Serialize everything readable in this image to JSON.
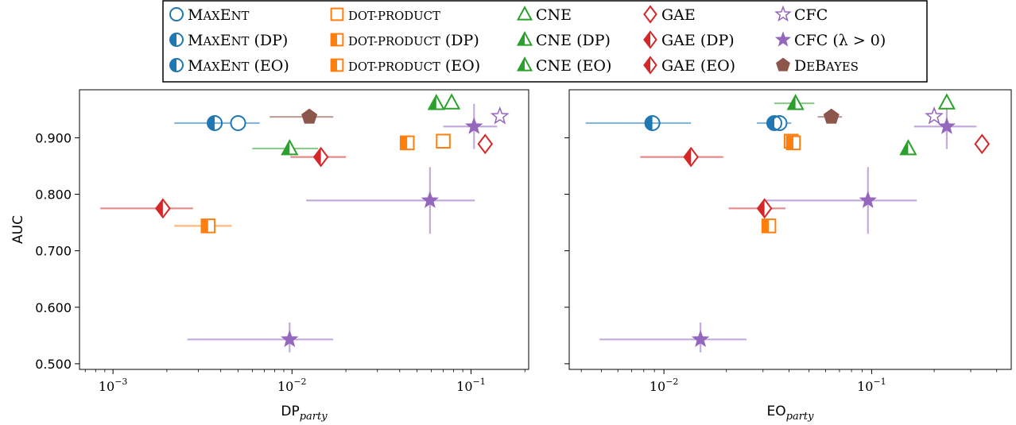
{
  "legend": {
    "columns": [
      [
        {
          "label": "MaxEnt",
          "marker": "circle",
          "fill": "none",
          "color": "#1f77b4"
        },
        {
          "label": "MaxEnt (DP)",
          "marker": "circle",
          "fill": "left",
          "color": "#1f77b4"
        },
        {
          "label": "MaxEnt (EO)",
          "marker": "circle",
          "fill": "left",
          "color": "#1f77b4"
        }
      ],
      [
        {
          "label": "dot-product",
          "marker": "square",
          "fill": "none",
          "color": "#ff7f0e"
        },
        {
          "label": "dot-product (DP)",
          "marker": "square",
          "fill": "left",
          "color": "#ff7f0e"
        },
        {
          "label": "dot-product (EO)",
          "marker": "square",
          "fill": "left",
          "color": "#ff7f0e"
        }
      ],
      [
        {
          "label": "CNE",
          "marker": "triangle",
          "fill": "none",
          "color": "#2ca02c"
        },
        {
          "label": "CNE (DP)",
          "marker": "triangle",
          "fill": "left",
          "color": "#2ca02c"
        },
        {
          "label": "CNE (EO)",
          "marker": "triangle",
          "fill": "left",
          "color": "#2ca02c"
        }
      ],
      [
        {
          "label": "GAE",
          "marker": "diamond",
          "fill": "none",
          "color": "#d62728"
        },
        {
          "label": "GAE (DP)",
          "marker": "diamond",
          "fill": "left",
          "color": "#d62728"
        },
        {
          "label": "GAE (EO)",
          "marker": "diamond",
          "fill": "left",
          "color": "#d62728"
        }
      ],
      [
        {
          "label": "CFC",
          "marker": "star",
          "fill": "none",
          "color": "#9467bd"
        },
        {
          "label": "CFC (λ > 0)",
          "marker": "star",
          "fill": "full",
          "color": "#9467bd"
        },
        {
          "label": "DeBayes",
          "marker": "pentagon",
          "fill": "full",
          "color": "#8c564b"
        }
      ]
    ]
  },
  "chart_data": [
    {
      "type": "scatter",
      "xlabel": "DP",
      "xlabel_sub": "party",
      "ylabel": "AUC",
      "xscale": "log",
      "xlim": [
        0.00065,
        0.21
      ],
      "ylim": [
        0.49,
        0.985
      ],
      "xticks": [
        {
          "value": 0.001,
          "exp": "-3"
        },
        {
          "value": 0.01,
          "exp": "-2"
        },
        {
          "value": 0.1,
          "exp": "-1"
        }
      ],
      "yticks": [
        0.5,
        0.6,
        0.7,
        0.8,
        0.9
      ],
      "ytick_labels": [
        "0.500",
        "0.600",
        "0.700",
        "0.800",
        "0.900"
      ],
      "points": [
        {
          "series": "MaxEnt",
          "x": 0.005,
          "y": 0.926,
          "xerr": [
            0.0038,
            0.0066
          ]
        },
        {
          "series": "MaxEnt (DP)",
          "x": 0.0037,
          "y": 0.926,
          "xerr": [
            0.0022,
            0.0055
          ]
        },
        {
          "series": "dot-product",
          "x": 0.07,
          "y": 0.894
        },
        {
          "series": "dot-product (DP)",
          "x": 0.044,
          "y": 0.891
        },
        {
          "series": "dot-product (EO)",
          "x": 0.0034,
          "y": 0.744,
          "xerr": [
            0.0022,
            0.0046
          ]
        },
        {
          "series": "CNE",
          "x": 0.078,
          "y": 0.962
        },
        {
          "series": "CNE (DP)",
          "x": 0.064,
          "y": 0.961
        },
        {
          "series": "CNE (EO)",
          "x": 0.0097,
          "y": 0.881,
          "xerr": [
            0.006,
            0.014
          ]
        },
        {
          "series": "GAE",
          "x": 0.12,
          "y": 0.889
        },
        {
          "series": "GAE (DP)",
          "x": 0.0145,
          "y": 0.866,
          "xerr": [
            0.0098,
            0.02
          ]
        },
        {
          "series": "GAE (EO)",
          "x": 0.0019,
          "y": 0.775,
          "xerr": [
            0.00085,
            0.0028
          ]
        },
        {
          "series": "CFC",
          "x": 0.145,
          "y": 0.938
        },
        {
          "series": "CFC (λ > 0)",
          "x": 0.104,
          "y": 0.92,
          "xerr": [
            0.07,
            0.14
          ],
          "yerr": [
            0.88,
            0.96
          ]
        },
        {
          "series": "CFC (λ > 0)",
          "x": 0.059,
          "y": 0.789,
          "xerr": [
            0.012,
            0.105
          ],
          "yerr": [
            0.73,
            0.848
          ]
        },
        {
          "series": "CFC (λ > 0)",
          "x": 0.0097,
          "y": 0.543,
          "xerr": [
            0.0026,
            0.017
          ],
          "yerr": [
            0.52,
            0.573
          ]
        },
        {
          "series": "DeBayes",
          "x": 0.0125,
          "y": 0.937,
          "xerr": [
            0.0075,
            0.017
          ]
        }
      ]
    },
    {
      "type": "scatter",
      "xlabel": "EO",
      "xlabel_sub": "party",
      "ylabel": "",
      "xscale": "log",
      "xlim": [
        0.0035,
        0.47
      ],
      "ylim": [
        0.49,
        0.985
      ],
      "xticks": [
        {
          "value": 0.01,
          "exp": "-2"
        },
        {
          "value": 0.1,
          "exp": "-1"
        }
      ],
      "yticks": [
        0.5,
        0.6,
        0.7,
        0.8,
        0.9
      ],
      "ytick_labels": [
        "",
        "",
        "",
        "",
        ""
      ],
      "points": [
        {
          "series": "MaxEnt",
          "x": 0.036,
          "y": 0.926
        },
        {
          "series": "MaxEnt (DP)",
          "x": 0.0088,
          "y": 0.926,
          "xerr": [
            0.0042,
            0.0135
          ]
        },
        {
          "series": "MaxEnt (EO)",
          "x": 0.034,
          "y": 0.926,
          "xerr": [
            0.028,
            0.041
          ]
        },
        {
          "series": "dot-product",
          "x": 0.041,
          "y": 0.894
        },
        {
          "series": "dot-product (DP)",
          "x": 0.042,
          "y": 0.891
        },
        {
          "series": "dot-product (EO)",
          "x": 0.032,
          "y": 0.744
        },
        {
          "series": "CNE",
          "x": 0.23,
          "y": 0.962
        },
        {
          "series": "CNE (DP)",
          "x": 0.043,
          "y": 0.961,
          "xerr": [
            0.034,
            0.053
          ]
        },
        {
          "series": "CNE (EO)",
          "x": 0.15,
          "y": 0.881
        },
        {
          "series": "GAE",
          "x": 0.34,
          "y": 0.889
        },
        {
          "series": "GAE (DP)",
          "x": 0.0135,
          "y": 0.866,
          "xerr": [
            0.0077,
            0.0193
          ]
        },
        {
          "series": "GAE (EO)",
          "x": 0.0305,
          "y": 0.775,
          "xerr": [
            0.0205,
            0.0385
          ]
        },
        {
          "series": "CFC",
          "x": 0.2,
          "y": 0.938
        },
        {
          "series": "CFC (λ > 0)",
          "x": 0.23,
          "y": 0.92,
          "xerr": [
            0.16,
            0.32
          ],
          "yerr": [
            0.88,
            0.96
          ]
        },
        {
          "series": "CFC (λ > 0)",
          "x": 0.096,
          "y": 0.789,
          "xerr": [
            0.031,
            0.165
          ],
          "yerr": [
            0.73,
            0.848
          ]
        },
        {
          "series": "CFC (λ > 0)",
          "x": 0.015,
          "y": 0.543,
          "xerr": [
            0.0049,
            0.025
          ],
          "yerr": [
            0.52,
            0.573
          ]
        },
        {
          "series": "DeBayes",
          "x": 0.064,
          "y": 0.937,
          "xerr": [
            0.055,
            0.072
          ]
        }
      ]
    }
  ]
}
